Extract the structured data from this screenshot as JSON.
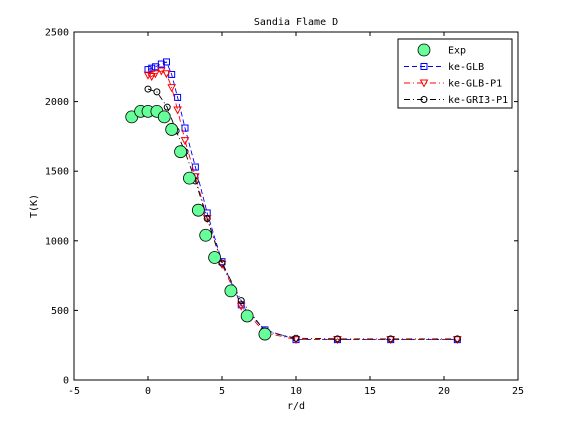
{
  "chart_data": {
    "type": "line",
    "title": "Sandia Flame D",
    "xlabel": "r/d",
    "ylabel": "T(K)",
    "xlim": [
      -5,
      25
    ],
    "ylim": [
      0,
      2500
    ],
    "xticks": [
      "-5",
      "0",
      "5",
      "10",
      "15",
      "20",
      "25"
    ],
    "yticks": [
      "0",
      "500",
      "1000",
      "1500",
      "2000",
      "2500"
    ],
    "grid": false,
    "legend_position": "top-right",
    "series": [
      {
        "name": "Exp",
        "marker": "circle-filled",
        "line": "none",
        "color": "#000000",
        "fill": "#66ff99",
        "x": [
          -1.1,
          -0.5,
          0.0,
          0.6,
          1.1,
          1.6,
          2.2,
          2.8,
          3.4,
          3.9,
          4.5,
          5.6,
          6.7,
          7.9
        ],
        "y": [
          1890,
          1930,
          1930,
          1930,
          1890,
          1800,
          1640,
          1450,
          1220,
          1040,
          880,
          640,
          460,
          330
        ]
      },
      {
        "name": "ke-GLB",
        "marker": "square",
        "line": "dashed",
        "color": "#0000ff",
        "x": [
          0.0,
          0.25,
          0.5,
          0.9,
          1.25,
          1.6,
          2.0,
          2.5,
          3.2,
          4.0,
          5.0,
          6.3,
          7.9,
          10.0,
          12.8,
          16.4,
          20.9
        ],
        "y": [
          2230,
          2240,
          2250,
          2270,
          2285,
          2195,
          2030,
          1810,
          1530,
          1200,
          850,
          540,
          360,
          290,
          290,
          290,
          290
        ]
      },
      {
        "name": "ke-GLB-P1",
        "marker": "triangle-down",
        "line": "dashdot",
        "color": "#ff0000",
        "x": [
          0.0,
          0.25,
          0.5,
          0.9,
          1.25,
          1.6,
          2.0,
          2.5,
          3.2,
          4.0,
          5.0,
          6.3,
          7.9,
          10.0,
          12.8,
          16.4,
          20.9
        ],
        "y": [
          2190,
          2180,
          2200,
          2220,
          2200,
          2100,
          1940,
          1720,
          1460,
          1160,
          830,
          530,
          340,
          290,
          290,
          290,
          290
        ]
      },
      {
        "name": "ke-GRI3-P1",
        "marker": "circle-open",
        "line": "dashdot",
        "color": "#000000",
        "x": [
          0.0,
          0.6,
          1.3,
          1.9,
          2.5,
          3.2,
          4.0,
          5.0,
          6.3,
          7.9,
          10.0,
          12.8,
          16.4,
          20.9
        ],
        "y": [
          2090,
          2070,
          1960,
          1790,
          1640,
          1430,
          1160,
          840,
          570,
          350,
          300,
          295,
          295,
          295
        ]
      }
    ]
  }
}
